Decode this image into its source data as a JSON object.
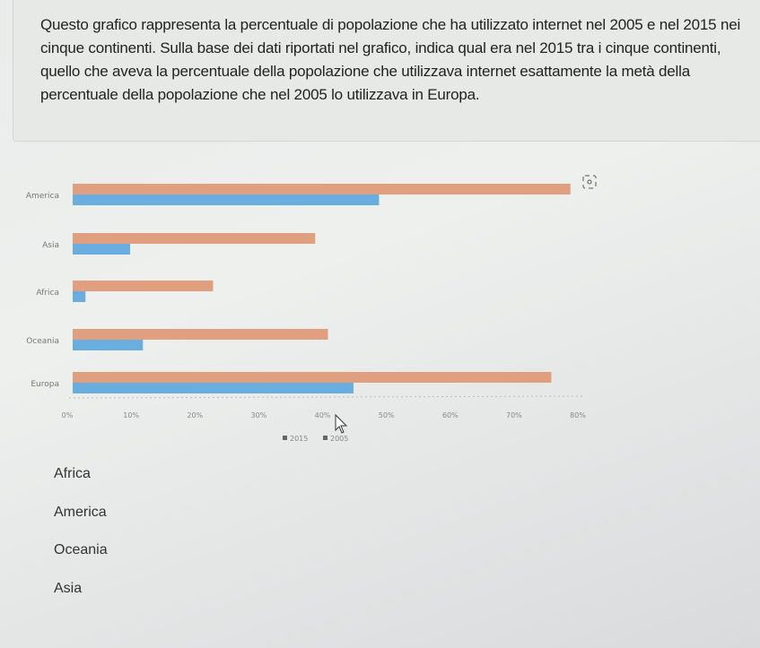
{
  "question": "Questo grafico rappresenta la percentuale di popolazione che ha utilizzato internet nel 2005 e nel 2015 nei cinque continenti. Sulla base dei dati riportati nel grafico, indica qual era nel 2015 tra i cinque continenti, quello che aveva la percentuale della popolazione che utilizzava internet esattamente la metà della percentuale della popolazione che nel 2005 lo utilizzava in Europa.",
  "chart_data": {
    "type": "bar",
    "orientation": "horizontal",
    "categories": [
      "America",
      "Asia",
      "Africa",
      "Oceania",
      "Europa"
    ],
    "series": [
      {
        "name": "2015",
        "color": "#e0a080",
        "values": [
          78,
          38,
          22,
          40,
          75
        ]
      },
      {
        "name": "2005",
        "color": "#6aaee0",
        "values": [
          48,
          9,
          2,
          11,
          44
        ]
      }
    ],
    "xlim": [
      0,
      80
    ],
    "xticks": [
      "0%",
      "10%",
      "20%",
      "30%",
      "40%",
      "50%",
      "60%",
      "70%",
      "80%"
    ],
    "legend": "bottom",
    "grid": false
  },
  "options": [
    "Africa",
    "America",
    "Oceania",
    "Asia"
  ],
  "icons": {
    "chart-expand": "focus-icon"
  }
}
